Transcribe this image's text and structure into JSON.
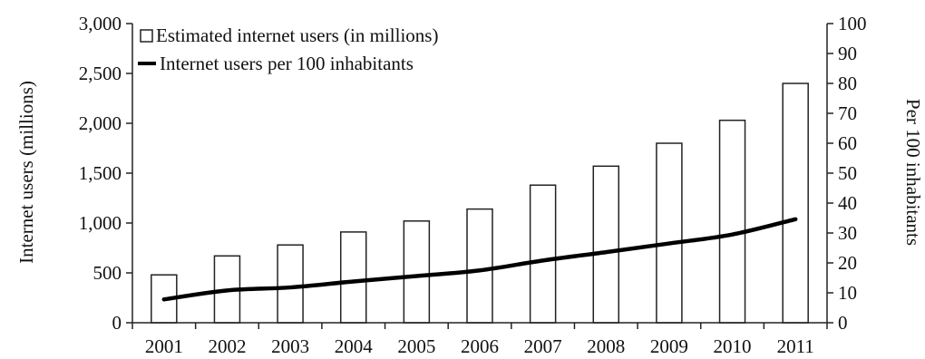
{
  "chart_data": {
    "type": "bar",
    "categories": [
      "2001",
      "2002",
      "2003",
      "2004",
      "2005",
      "2006",
      "2007",
      "2008",
      "2009",
      "2010",
      "2011"
    ],
    "series": [
      {
        "name": "Estimated internet users (in millions)",
        "type": "bar",
        "axis": "left",
        "values": [
          480,
          670,
          780,
          910,
          1020,
          1140,
          1380,
          1570,
          1800,
          2030,
          2400
        ]
      },
      {
        "name": "Internet users per 100 inhabitants",
        "type": "line",
        "axis": "right",
        "values": [
          7.8,
          10.8,
          11.8,
          13.8,
          15.6,
          17.5,
          20.8,
          23.6,
          26.5,
          29.5,
          34.6
        ]
      }
    ],
    "title": "",
    "xlabel": "",
    "ylabel": "Internet users (millions)",
    "y2label": "Per 100 inhabitants",
    "ylim": [
      0,
      3000
    ],
    "y2lim": [
      0,
      100
    ],
    "yticks": [
      "0",
      "500",
      "1,000",
      "1,500",
      "2,000",
      "2,500",
      "3,000"
    ],
    "y2ticks": [
      "0",
      "10",
      "20",
      "30",
      "40",
      "50",
      "60",
      "70",
      "80",
      "90",
      "100"
    ],
    "grid": false,
    "legend": "top-left",
    "colors": {
      "bar_fill": "#ffffff",
      "bar_stroke": "#222222",
      "line": "#000000",
      "axis": "#222222"
    }
  }
}
